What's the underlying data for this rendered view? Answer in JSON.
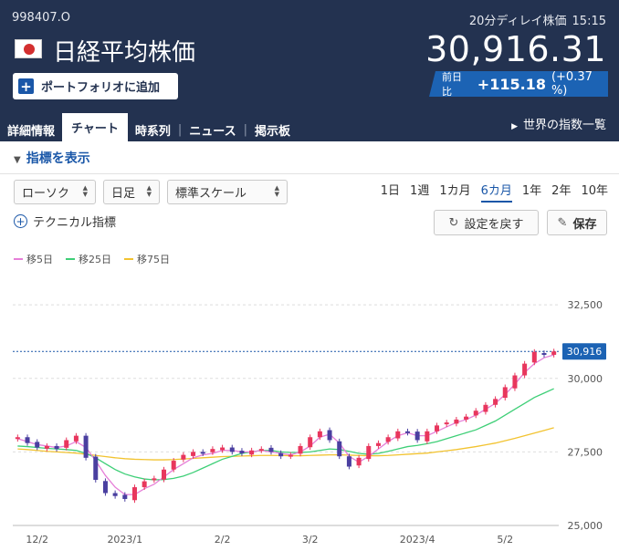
{
  "header": {
    "code": "998407.O",
    "name": "日経平均株価",
    "delay_label": "20分ディレイ株価",
    "time": "15:15",
    "price": "30,916.31",
    "add_portfolio": "ポートフォリオに追加",
    "change_label": "前日比",
    "change_value": "+115.18",
    "change_pct": "(+0.37 %)",
    "tabs": [
      {
        "label": "詳細情報"
      },
      {
        "label": "チャート"
      },
      {
        "label": "時系列"
      },
      {
        "label": "ニュース"
      },
      {
        "label": "掲示板"
      }
    ],
    "world_link": "世界の指数一覧"
  },
  "controls": {
    "indicator_toggle": "指標を表示",
    "chart_type": "ローソク",
    "interval": "日足",
    "scale": "標準スケール",
    "periods": [
      "1日",
      "1週",
      "1カ月",
      "6カ月",
      "1年",
      "2年",
      "10年"
    ],
    "active_period": "6カ月",
    "technical": "テクニカル指標",
    "reset": "設定を戻す",
    "save": "保存"
  },
  "colors": {
    "header_bg": "#233250",
    "accent": "#1a57a8",
    "up": "#e8365d",
    "down": "#4a3fa0",
    "ma5": "#e67fd8",
    "ma25": "#3ecf77",
    "ma75": "#f2c330"
  },
  "chart_data": {
    "type": "candlestick",
    "legend": [
      "移5日",
      "移25日",
      "移75日"
    ],
    "x_tick_labels": [
      "12/2",
      "2023/1",
      "2/2",
      "3/2",
      "2023/4",
      "5/2"
    ],
    "y_tick_labels": [
      "32,500",
      "30,000",
      "27,500",
      "25,000"
    ],
    "y_ticks": [
      32500,
      30000,
      27500,
      25000
    ],
    "ylim": [
      25000,
      33000
    ],
    "last_value": 30916,
    "last_value_label": "30,916",
    "closes": [
      28000,
      27800,
      27650,
      27700,
      27600,
      27900,
      28050,
      27300,
      26550,
      26100,
      26000,
      25900,
      26300,
      26500,
      26600,
      26900,
      27200,
      27400,
      27500,
      27450,
      27600,
      27650,
      27500,
      27450,
      27550,
      27600,
      27500,
      27350,
      27400,
      27700,
      28000,
      28200,
      27900,
      27350,
      27000,
      27300,
      27700,
      27800,
      28000,
      28200,
      28150,
      27900,
      28200,
      28400,
      28500,
      28600,
      28700,
      28900,
      29100,
      29300,
      29700,
      30100,
      30500,
      30900,
      30800,
      30916
    ],
    "ma5": [
      27950,
      27850,
      27750,
      27700,
      27650,
      27700,
      27850,
      27650,
      27200,
      26700,
      26300,
      26050,
      26050,
      26250,
      26400,
      26650,
      26900,
      27100,
      27300,
      27400,
      27450,
      27550,
      27550,
      27500,
      27500,
      27550,
      27500,
      27450,
      27400,
      27500,
      27700,
      28000,
      28100,
      27800,
      27350,
      27150,
      27350,
      27600,
      27850,
      28050,
      28150,
      28050,
      28050,
      28200,
      28350,
      28500,
      28600,
      28750,
      28950,
      29150,
      29450,
      29800,
      30200,
      30500,
      30700,
      30800
    ],
    "ma25": [
      27700,
      27680,
      27650,
      27620,
      27600,
      27580,
      27550,
      27450,
      27300,
      27100,
      26900,
      26750,
      26650,
      26580,
      26550,
      26560,
      26600,
      26680,
      26800,
      26950,
      27100,
      27250,
      27350,
      27450,
      27500,
      27550,
      27550,
      27500,
      27480,
      27480,
      27500,
      27550,
      27600,
      27580,
      27520,
      27450,
      27420,
      27450,
      27520,
      27600,
      27680,
      27720,
      27780,
      27850,
      27950,
      28050,
      28150,
      28250,
      28400,
      28550,
      28750,
      28950,
      29150,
      29350,
      29500,
      29650
    ],
    "ma75": [
      27600,
      27580,
      27550,
      27520,
      27500,
      27480,
      27460,
      27420,
      27380,
      27340,
      27300,
      27270,
      27250,
      27240,
      27230,
      27230,
      27240,
      27260,
      27280,
      27300,
      27320,
      27340,
      27350,
      27360,
      27370,
      27380,
      27380,
      27380,
      27370,
      27370,
      27380,
      27390,
      27400,
      27400,
      27390,
      27380,
      27370,
      27370,
      27380,
      27400,
      27420,
      27440,
      27460,
      27500,
      27540,
      27580,
      27630,
      27680,
      27740,
      27800,
      27880,
      27960,
      28050,
      28140,
      28230,
      28320
    ]
  }
}
